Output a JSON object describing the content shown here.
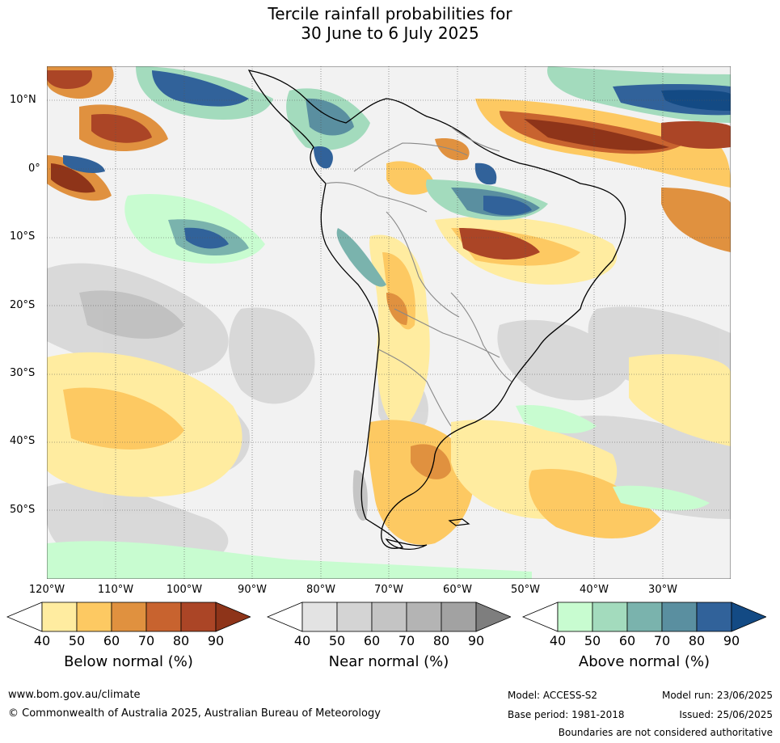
{
  "title_line1": "Tercile rainfall probabilities for",
  "title_line2": "30 June to 6 July 2025",
  "lat_labels": [
    "10°N",
    "0°",
    "10°S",
    "20°S",
    "30°S",
    "40°S",
    "50°S"
  ],
  "lon_labels": [
    "120°W",
    "110°W",
    "100°W",
    "90°W",
    "80°W",
    "70°W",
    "60°W",
    "50°W",
    "40°W",
    "30°W"
  ],
  "legend": {
    "below": {
      "label": "Below normal (%)",
      "ticks": [
        "40",
        "50",
        "60",
        "70",
        "80",
        "90"
      ],
      "colors": [
        "#ffeca0",
        "#fdc962",
        "#e0913f",
        "#c8632f",
        "#ab4526",
        "#8e3419"
      ]
    },
    "near": {
      "label": "Near normal (%)",
      "ticks": [
        "40",
        "50",
        "60",
        "70",
        "80",
        "90"
      ],
      "colors": [
        "#e3e3e3",
        "#d4d4d4",
        "#c4c4c4",
        "#b4b4b4",
        "#a2a2a2",
        "#7e7e7e"
      ]
    },
    "above": {
      "label": "Above normal (%)",
      "ticks": [
        "40",
        "50",
        "60",
        "70",
        "80",
        "90"
      ],
      "colors": [
        "#c8fcd0",
        "#a3dbbd",
        "#7ab3ad",
        "#5a8fa0",
        "#31629a",
        "#134a84"
      ]
    }
  },
  "footer": {
    "url": "www.bom.gov.au/climate",
    "copyright": "© Commonwealth of Australia 2025, Australian Bureau of Meteorology",
    "model": "Model: ACCESS-S2",
    "model_run": "Model run: 23/06/2025",
    "base_period": "Base period: 1981-2018",
    "issued": "Issued: 25/06/2025",
    "disclaimer": "Boundaries are not considered authoritative"
  }
}
